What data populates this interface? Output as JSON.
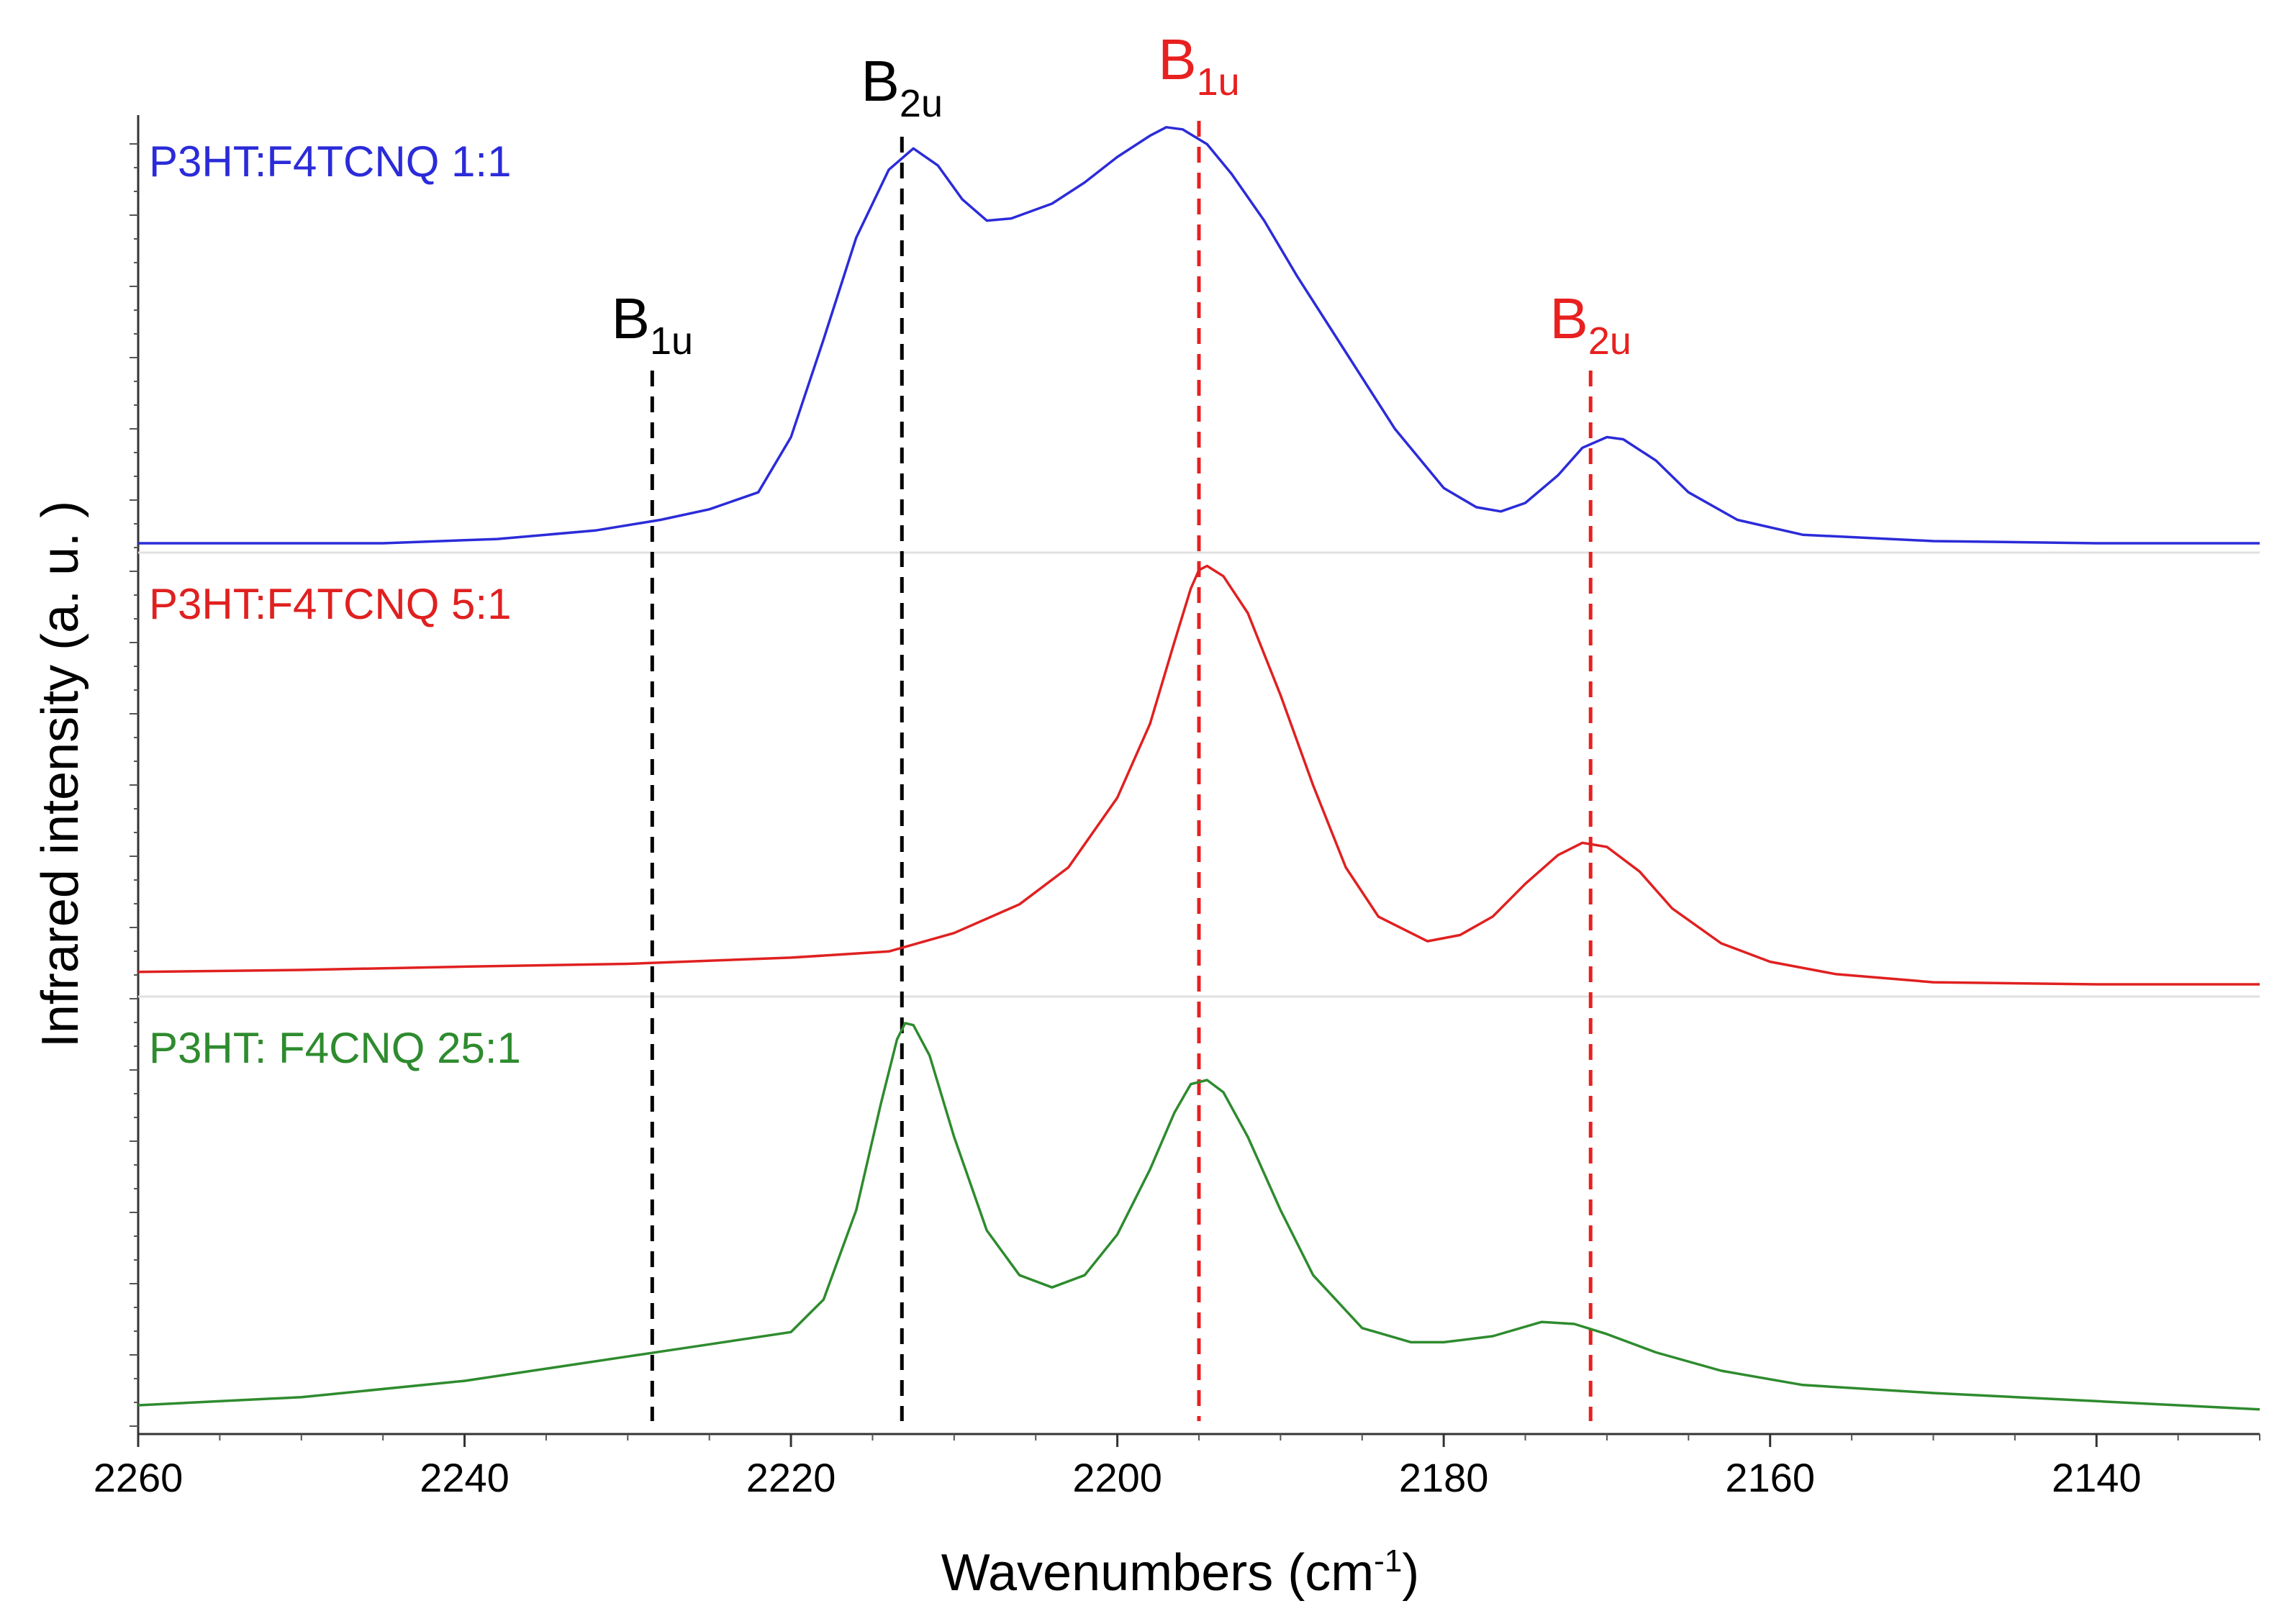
{
  "chart_data": {
    "type": "line",
    "title": "",
    "xlabel": "Wavenumbers (cm",
    "xlabel_sup": "-1",
    "xlabel_end": ")",
    "ylabel": "Infrared intensity (a. u. )",
    "xlim": [
      2260,
      2130
    ],
    "x_reversed": true,
    "x_ticks": [
      2260,
      2240,
      2220,
      2200,
      2180,
      2160,
      2140
    ],
    "y_units": "arbitrary (stacked, offset)",
    "grid": false,
    "series": [
      {
        "name": "P3HT:F4TCNQ 1:1",
        "color": "#2b2bd9",
        "baseline": 0.0,
        "points": [
          [
            2260,
            0.0
          ],
          [
            2245,
            0.0
          ],
          [
            2238,
            0.01
          ],
          [
            2232,
            0.03
          ],
          [
            2228,
            0.055
          ],
          [
            2225,
            0.08
          ],
          [
            2222,
            0.12
          ],
          [
            2220,
            0.25
          ],
          [
            2218,
            0.48
          ],
          [
            2216,
            0.72
          ],
          [
            2214,
            0.88
          ],
          [
            2212.5,
            0.93
          ],
          [
            2211,
            0.89
          ],
          [
            2209.5,
            0.81
          ],
          [
            2208,
            0.76
          ],
          [
            2206.5,
            0.765
          ],
          [
            2204,
            0.8
          ],
          [
            2202,
            0.85
          ],
          [
            2200,
            0.91
          ],
          [
            2198,
            0.96
          ],
          [
            2197,
            0.98
          ],
          [
            2196,
            0.975
          ],
          [
            2194.5,
            0.94
          ],
          [
            2193,
            0.87
          ],
          [
            2191,
            0.76
          ],
          [
            2189,
            0.63
          ],
          [
            2186,
            0.45
          ],
          [
            2183,
            0.27
          ],
          [
            2180,
            0.13
          ],
          [
            2178,
            0.085
          ],
          [
            2176.5,
            0.075
          ],
          [
            2175,
            0.095
          ],
          [
            2173,
            0.16
          ],
          [
            2171.5,
            0.225
          ],
          [
            2170,
            0.25
          ],
          [
            2169,
            0.245
          ],
          [
            2167,
            0.195
          ],
          [
            2165,
            0.12
          ],
          [
            2162,
            0.055
          ],
          [
            2158,
            0.02
          ],
          [
            2150,
            0.005
          ],
          [
            2140,
            0.0
          ],
          [
            2130,
            0.0
          ]
        ]
      },
      {
        "name": "P3HT:F4TCNQ 5:1",
        "color": "#e02020",
        "baseline": 0.0,
        "points": [
          [
            2260,
            -0.005
          ],
          [
            2250,
            0.0
          ],
          [
            2240,
            0.008
          ],
          [
            2230,
            0.015
          ],
          [
            2220,
            0.03
          ],
          [
            2214,
            0.045
          ],
          [
            2210,
            0.09
          ],
          [
            2206,
            0.16
          ],
          [
            2203,
            0.25
          ],
          [
            2200,
            0.42
          ],
          [
            2198,
            0.6
          ],
          [
            2196.5,
            0.8
          ],
          [
            2195.5,
            0.93
          ],
          [
            2195,
            0.975
          ],
          [
            2194.5,
            0.985
          ],
          [
            2193.5,
            0.96
          ],
          [
            2192,
            0.87
          ],
          [
            2190,
            0.67
          ],
          [
            2188,
            0.45
          ],
          [
            2186,
            0.25
          ],
          [
            2184,
            0.13
          ],
          [
            2181,
            0.07
          ],
          [
            2179,
            0.085
          ],
          [
            2177,
            0.13
          ],
          [
            2175,
            0.21
          ],
          [
            2173,
            0.28
          ],
          [
            2171.5,
            0.31
          ],
          [
            2170,
            0.3
          ],
          [
            2168,
            0.24
          ],
          [
            2166,
            0.15
          ],
          [
            2163,
            0.065
          ],
          [
            2160,
            0.02
          ],
          [
            2156,
            -0.01
          ],
          [
            2150,
            -0.03
          ],
          [
            2140,
            -0.035
          ],
          [
            2130,
            -0.035
          ]
        ]
      },
      {
        "name": "P3HT: F4CNQ 25:1",
        "color": "#2e8b2e",
        "baseline": 0.0,
        "points": [
          [
            2260,
            0.0
          ],
          [
            2250,
            0.02
          ],
          [
            2240,
            0.06
          ],
          [
            2230,
            0.12
          ],
          [
            2225,
            0.15
          ],
          [
            2220,
            0.18
          ],
          [
            2218,
            0.26
          ],
          [
            2216,
            0.48
          ],
          [
            2214.5,
            0.74
          ],
          [
            2213.5,
            0.9
          ],
          [
            2213,
            0.94
          ],
          [
            2212.5,
            0.935
          ],
          [
            2211.5,
            0.86
          ],
          [
            2210,
            0.66
          ],
          [
            2208,
            0.43
          ],
          [
            2206,
            0.32
          ],
          [
            2204,
            0.29
          ],
          [
            2202,
            0.32
          ],
          [
            2200,
            0.42
          ],
          [
            2198,
            0.58
          ],
          [
            2196.5,
            0.72
          ],
          [
            2195.5,
            0.79
          ],
          [
            2194.5,
            0.8
          ],
          [
            2193.5,
            0.77
          ],
          [
            2192,
            0.66
          ],
          [
            2190,
            0.48
          ],
          [
            2188,
            0.32
          ],
          [
            2185,
            0.19
          ],
          [
            2182,
            0.155
          ],
          [
            2180,
            0.155
          ],
          [
            2177,
            0.17
          ],
          [
            2174,
            0.205
          ],
          [
            2172,
            0.2
          ],
          [
            2170,
            0.175
          ],
          [
            2167,
            0.13
          ],
          [
            2163,
            0.085
          ],
          [
            2158,
            0.05
          ],
          [
            2150,
            0.03
          ],
          [
            2140,
            0.01
          ],
          [
            2130,
            -0.01
          ]
        ]
      }
    ],
    "reference_lines": [
      {
        "x": 2228.5,
        "color": "#000000",
        "label": "B",
        "label_sub": "1u",
        "style": "dashed"
      },
      {
        "x": 2213.2,
        "color": "#000000",
        "label": "B",
        "label_sub": "2u",
        "style": "dashed"
      },
      {
        "x": 2195,
        "color": "#e82020",
        "label": "B",
        "label_sub": "1u",
        "style": "dashed"
      },
      {
        "x": 2171,
        "color": "#e82020",
        "label": "B",
        "label_sub": "2u",
        "style": "dashed"
      }
    ]
  }
}
